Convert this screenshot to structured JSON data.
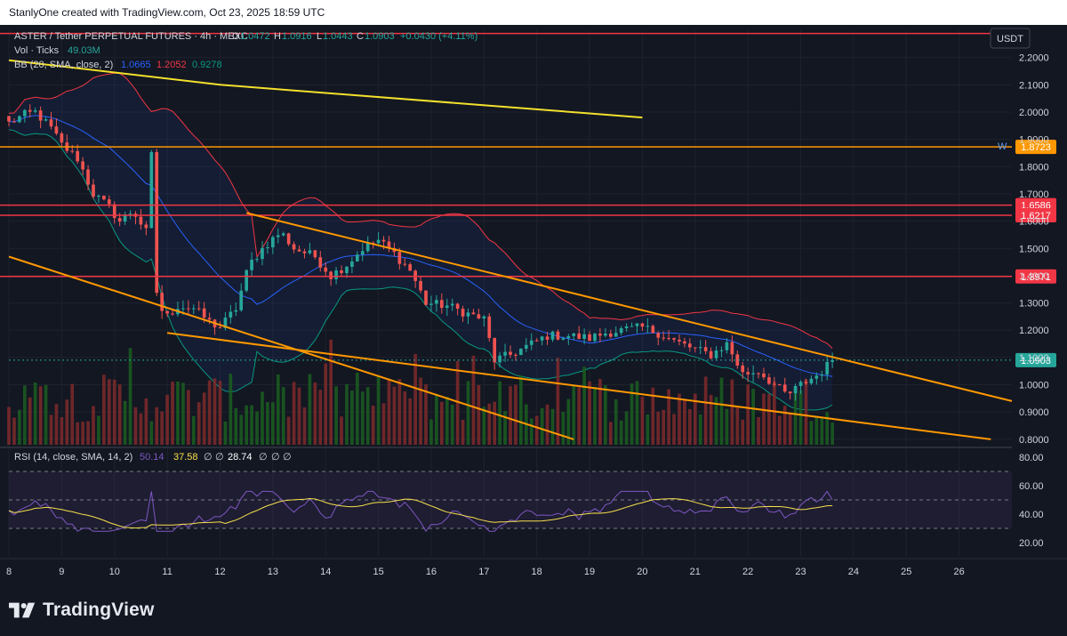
{
  "header": {
    "credit": "StanlyOne created with TradingView.com, Oct 23, 2025 18:59 UTC"
  },
  "legend": {
    "symbol": "ASTER / Tether PERPETUAL FUTURES · 4h · MEXC",
    "o_label": "O",
    "o_value": "1.0472",
    "h_label": "H",
    "h_value": "1.0916",
    "l_label": "L",
    "l_value": "1.0443",
    "c_label": "C",
    "c_value": "1.0903",
    "change": "+0.0430 (+4.11%)",
    "vol_label": "Vol · Ticks",
    "vol_value": "49.03M",
    "bb_label": "BB (20, SMA, close, 2)",
    "bb_basis": "1.0665",
    "bb_upper": "1.2052",
    "bb_lower": "0.9278",
    "rsi_label": "RSI (14, close, SMA, 14, 2)",
    "rsi_value": "50.14",
    "rsi_ma": "37.58",
    "rsi_na1": "∅",
    "rsi_na2": "∅",
    "rsi_div": "28.74",
    "rsi_na3": "∅",
    "rsi_na4": "∅",
    "rsi_na5": "∅"
  },
  "currency_button": "USDT",
  "w_marker": "W",
  "brand": {
    "name": "TradingView"
  },
  "colors": {
    "background": "#131722",
    "bull": "#26a69a",
    "bear": "#ef5350",
    "bb_basis": "#2962ff",
    "bb_band": "#f23645",
    "bb_lower": "#089981",
    "rsi_line": "#7e57c2",
    "rsi_ma": "#f7e04b",
    "trend_yellow": "#f4e02c",
    "trend_orange": "#ff9800",
    "level_red": "#f23645",
    "level_orange": "#ff9800"
  },
  "chart_data": {
    "type": "candlestick",
    "price_axis": {
      "min": 0.78,
      "max": 2.3,
      "ticks": [
        "2.2000",
        "2.1000",
        "2.0000",
        "1.9000",
        "1.8000",
        "1.7000",
        "1.6000",
        "1.5000",
        "1.4000",
        "1.3000",
        "1.2000",
        "1.1000",
        "1.0000",
        "0.9000",
        "0.8000"
      ]
    },
    "rsi_axis": {
      "min": 10,
      "max": 85,
      "ticks": [
        "80.00",
        "60.00",
        "40.00",
        "20.00"
      ],
      "upper_band": 70,
      "mid_band": 50,
      "lower_band": 30
    },
    "x_axis": {
      "start": 8.0,
      "end": 27.0,
      "labels": [
        "8",
        "9",
        "10",
        "11",
        "12",
        "13",
        "14",
        "15",
        "16",
        "17",
        "18",
        "19",
        "20",
        "21",
        "22",
        "23",
        "24",
        "25",
        "26"
      ]
    },
    "current_price": {
      "label": "1.0903",
      "value": 1.0903
    },
    "horizontal_levels": [
      {
        "price": 2.288,
        "type": "red",
        "label": ""
      },
      {
        "price": 1.8723,
        "type": "orange",
        "label": "1.8723"
      },
      {
        "price": 1.6586,
        "type": "red",
        "label": "1.6586"
      },
      {
        "price": 1.6217,
        "type": "red",
        "label": "1.6217"
      },
      {
        "price": 1.3971,
        "type": "red",
        "label": "1.3971"
      }
    ],
    "trendlines": [
      {
        "color": "yellow",
        "from": [
          8.0,
          2.19
        ],
        "to": [
          12.0,
          2.1
        ],
        "second": [
          20.0,
          1.98
        ]
      },
      {
        "color": "orange",
        "from": [
          12.5,
          1.63
        ],
        "to": [
          27.0,
          0.94
        ]
      },
      {
        "color": "orange",
        "from": [
          11.0,
          1.19
        ],
        "to": [
          26.6,
          0.8
        ]
      },
      {
        "color": "orange",
        "from": [
          8.0,
          1.47
        ],
        "to": [
          18.7,
          0.8
        ]
      }
    ],
    "anchor_closes": [
      [
        8.0,
        1.96
      ],
      [
        8.3,
        1.99
      ],
      [
        8.5,
        2.0
      ],
      [
        8.8,
        1.94
      ],
      [
        9.0,
        1.88
      ],
      [
        9.3,
        1.83
      ],
      [
        9.6,
        1.7
      ],
      [
        9.9,
        1.65
      ],
      [
        10.1,
        1.6
      ],
      [
        10.35,
        1.64
      ],
      [
        10.6,
        1.56
      ],
      [
        10.7,
        1.84
      ],
      [
        10.8,
        1.34
      ],
      [
        10.95,
        1.24
      ],
      [
        11.2,
        1.29
      ],
      [
        11.5,
        1.28
      ],
      [
        11.8,
        1.23
      ],
      [
        12.0,
        1.21
      ],
      [
        12.3,
        1.28
      ],
      [
        12.55,
        1.44
      ],
      [
        12.85,
        1.51
      ],
      [
        13.15,
        1.56
      ],
      [
        13.4,
        1.5
      ],
      [
        13.8,
        1.47
      ],
      [
        14.1,
        1.4
      ],
      [
        14.4,
        1.44
      ],
      [
        14.7,
        1.5
      ],
      [
        15.0,
        1.53
      ],
      [
        15.3,
        1.48
      ],
      [
        15.6,
        1.42
      ],
      [
        15.9,
        1.3
      ],
      [
        16.3,
        1.29
      ],
      [
        16.7,
        1.26
      ],
      [
        17.0,
        1.24
      ],
      [
        17.2,
        1.09
      ],
      [
        17.5,
        1.11
      ],
      [
        17.8,
        1.14
      ],
      [
        18.2,
        1.18
      ],
      [
        18.6,
        1.18
      ],
      [
        19.0,
        1.17
      ],
      [
        19.3,
        1.19
      ],
      [
        19.6,
        1.2
      ],
      [
        20.0,
        1.21
      ],
      [
        20.3,
        1.19
      ],
      [
        20.6,
        1.16
      ],
      [
        21.0,
        1.13
      ],
      [
        21.3,
        1.11
      ],
      [
        21.6,
        1.15
      ],
      [
        21.9,
        1.04
      ],
      [
        22.2,
        1.05
      ],
      [
        22.5,
        1.0
      ],
      [
        22.75,
        0.96
      ],
      [
        23.0,
        1.0
      ],
      [
        23.35,
        1.04
      ],
      [
        23.6,
        1.09
      ]
    ]
  }
}
